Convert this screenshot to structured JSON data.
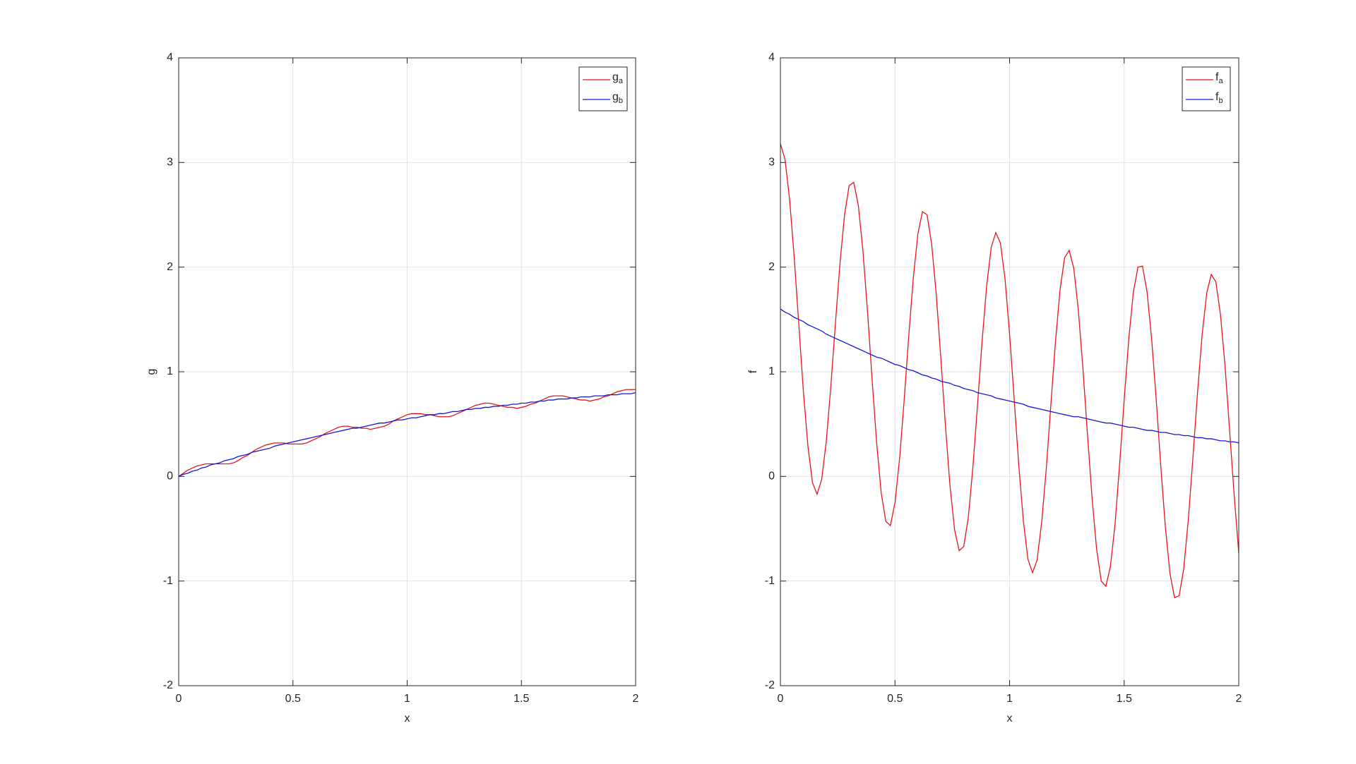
{
  "chart_data": [
    {
      "type": "line",
      "xlabel": "x",
      "ylabel": "g",
      "x": [
        0,
        0.02,
        0.04,
        0.06,
        0.08,
        0.1,
        0.12,
        0.14,
        0.16,
        0.18,
        0.2,
        0.22,
        0.24,
        0.26,
        0.28,
        0.3,
        0.32,
        0.34,
        0.36,
        0.38,
        0.4,
        0.42,
        0.44,
        0.46,
        0.48,
        0.5,
        0.52,
        0.54,
        0.56,
        0.58,
        0.6,
        0.62,
        0.64,
        0.66,
        0.68,
        0.7,
        0.72,
        0.74,
        0.76,
        0.78,
        0.8,
        0.82,
        0.84,
        0.86,
        0.88,
        0.9,
        0.92,
        0.94,
        0.96,
        0.98,
        1,
        1.02,
        1.04,
        1.06,
        1.08,
        1.1,
        1.12,
        1.14,
        1.16,
        1.18,
        1.2,
        1.22,
        1.24,
        1.26,
        1.28,
        1.3,
        1.32,
        1.34,
        1.36,
        1.38,
        1.4,
        1.42,
        1.44,
        1.46,
        1.48,
        1.5,
        1.52,
        1.54,
        1.56,
        1.58,
        1.6,
        1.62,
        1.64,
        1.66,
        1.68,
        1.7,
        1.72,
        1.74,
        1.76,
        1.78,
        1.8,
        1.82,
        1.84,
        1.86,
        1.88,
        1.9,
        1.92,
        1.94,
        1.96,
        1.98,
        2
      ],
      "series": [
        {
          "name": "g_a",
          "color": "#e8141c",
          "values": [
            0,
            0.03,
            0.06,
            0.08,
            0.1,
            0.11,
            0.12,
            0.12,
            0.12,
            0.12,
            0.12,
            0.12,
            0.13,
            0.15,
            0.18,
            0.2,
            0.23,
            0.26,
            0.28,
            0.3,
            0.31,
            0.32,
            0.32,
            0.32,
            0.31,
            0.31,
            0.31,
            0.31,
            0.32,
            0.34,
            0.36,
            0.38,
            0.41,
            0.43,
            0.45,
            0.47,
            0.48,
            0.48,
            0.47,
            0.47,
            0.46,
            0.46,
            0.45,
            0.46,
            0.47,
            0.48,
            0.5,
            0.53,
            0.55,
            0.57,
            0.59,
            0.6,
            0.6,
            0.6,
            0.59,
            0.59,
            0.58,
            0.57,
            0.57,
            0.57,
            0.58,
            0.6,
            0.62,
            0.64,
            0.66,
            0.68,
            0.69,
            0.7,
            0.7,
            0.69,
            0.68,
            0.67,
            0.66,
            0.66,
            0.65,
            0.66,
            0.67,
            0.69,
            0.7,
            0.72,
            0.74,
            0.76,
            0.77,
            0.77,
            0.77,
            0.76,
            0.75,
            0.74,
            0.73,
            0.73,
            0.72,
            0.73,
            0.74,
            0.76,
            0.77,
            0.79,
            0.81,
            0.82,
            0.83,
            0.83,
            0.83
          ]
        },
        {
          "name": "g_b",
          "color": "#1616d6",
          "values": [
            0,
            0.02,
            0.03,
            0.05,
            0.06,
            0.08,
            0.09,
            0.11,
            0.12,
            0.13,
            0.15,
            0.16,
            0.17,
            0.19,
            0.2,
            0.21,
            0.23,
            0.24,
            0.25,
            0.26,
            0.27,
            0.29,
            0.3,
            0.31,
            0.32,
            0.33,
            0.34,
            0.35,
            0.36,
            0.37,
            0.38,
            0.39,
            0.4,
            0.41,
            0.42,
            0.43,
            0.44,
            0.45,
            0.46,
            0.46,
            0.47,
            0.48,
            0.49,
            0.5,
            0.51,
            0.51,
            0.52,
            0.53,
            0.54,
            0.54,
            0.55,
            0.56,
            0.56,
            0.57,
            0.58,
            0.59,
            0.59,
            0.6,
            0.6,
            0.61,
            0.62,
            0.62,
            0.63,
            0.64,
            0.64,
            0.65,
            0.65,
            0.66,
            0.66,
            0.67,
            0.67,
            0.68,
            0.68,
            0.69,
            0.69,
            0.7,
            0.7,
            0.71,
            0.71,
            0.72,
            0.72,
            0.73,
            0.73,
            0.74,
            0.74,
            0.74,
            0.75,
            0.75,
            0.76,
            0.76,
            0.76,
            0.77,
            0.77,
            0.77,
            0.78,
            0.78,
            0.78,
            0.79,
            0.79,
            0.79,
            0.8
          ]
        }
      ],
      "xlim": [
        0,
        2
      ],
      "ylim": [
        -2,
        4
      ],
      "xticks": [
        0,
        0.5,
        1,
        1.5,
        2
      ],
      "yticks": [
        -2,
        -1,
        0,
        1,
        2,
        3,
        4
      ],
      "grid": true,
      "legend": "northeast"
    },
    {
      "type": "line",
      "xlabel": "x",
      "ylabel": "f",
      "x": [
        0,
        0.02,
        0.04,
        0.06,
        0.08,
        0.1,
        0.12,
        0.14,
        0.16,
        0.18,
        0.2,
        0.22,
        0.24,
        0.26,
        0.28,
        0.3,
        0.32,
        0.34,
        0.36,
        0.38,
        0.4,
        0.42,
        0.44,
        0.46,
        0.48,
        0.5,
        0.52,
        0.54,
        0.56,
        0.58,
        0.6,
        0.62,
        0.64,
        0.66,
        0.68,
        0.7,
        0.72,
        0.74,
        0.76,
        0.78,
        0.8,
        0.82,
        0.84,
        0.86,
        0.88,
        0.9,
        0.92,
        0.94,
        0.96,
        0.98,
        1,
        1.02,
        1.04,
        1.06,
        1.08,
        1.1,
        1.12,
        1.14,
        1.16,
        1.18,
        1.2,
        1.22,
        1.24,
        1.26,
        1.28,
        1.3,
        1.32,
        1.34,
        1.36,
        1.38,
        1.4,
        1.42,
        1.44,
        1.46,
        1.48,
        1.5,
        1.52,
        1.54,
        1.56,
        1.58,
        1.6,
        1.62,
        1.64,
        1.66,
        1.68,
        1.7,
        1.72,
        1.74,
        1.76,
        1.78,
        1.8,
        1.82,
        1.84,
        1.86,
        1.88,
        1.9,
        1.92,
        1.94,
        1.96,
        1.98,
        2
      ],
      "series": [
        {
          "name": "f_a",
          "color": "#e8141c",
          "values": [
            3.18,
            3.03,
            2.65,
            2.1,
            1.46,
            0.82,
            0.29,
            -0.06,
            -0.17,
            -0.03,
            0.33,
            0.86,
            1.46,
            2.04,
            2.5,
            2.78,
            2.81,
            2.59,
            2.16,
            1.58,
            0.93,
            0.32,
            -0.16,
            -0.43,
            -0.47,
            -0.25,
            0.17,
            0.73,
            1.34,
            1.9,
            2.32,
            2.53,
            2.5,
            2.22,
            1.74,
            1.13,
            0.49,
            -0.09,
            -0.51,
            -0.71,
            -0.67,
            -0.39,
            0.09,
            0.68,
            1.29,
            1.82,
            2.19,
            2.33,
            2.23,
            1.89,
            1.36,
            0.74,
            0.11,
            -0.42,
            -0.79,
            -0.92,
            -0.8,
            -0.44,
            0.07,
            0.68,
            1.28,
            1.78,
            2.09,
            2.16,
            1.99,
            1.59,
            1.03,
            0.4,
            -0.21,
            -0.7,
            -1,
            -1.05,
            -0.86,
            -0.46,
            0.11,
            0.73,
            1.31,
            1.76,
            2,
            2.01,
            1.76,
            1.31,
            0.73,
            0.09,
            -0.49,
            -0.93,
            -1.16,
            -1.14,
            -0.88,
            -0.41,
            0.18,
            0.8,
            1.35,
            1.75,
            1.93,
            1.86,
            1.55,
            1.06,
            0.44,
            -0.18,
            -0.73
          ]
        },
        {
          "name": "f_b",
          "color": "#1616d6",
          "values": [
            1.6,
            1.57,
            1.55,
            1.52,
            1.5,
            1.48,
            1.45,
            1.43,
            1.41,
            1.39,
            1.36,
            1.34,
            1.32,
            1.3,
            1.28,
            1.26,
            1.24,
            1.22,
            1.2,
            1.18,
            1.16,
            1.14,
            1.13,
            1.11,
            1.09,
            1.07,
            1.06,
            1.04,
            1.02,
            1.01,
            0.99,
            0.97,
            0.96,
            0.94,
            0.93,
            0.91,
            0.9,
            0.89,
            0.87,
            0.86,
            0.84,
            0.83,
            0.82,
            0.8,
            0.79,
            0.78,
            0.77,
            0.75,
            0.74,
            0.73,
            0.72,
            0.71,
            0.7,
            0.69,
            0.67,
            0.66,
            0.65,
            0.64,
            0.63,
            0.62,
            0.61,
            0.6,
            0.59,
            0.58,
            0.57,
            0.57,
            0.56,
            0.55,
            0.54,
            0.53,
            0.52,
            0.51,
            0.51,
            0.5,
            0.49,
            0.48,
            0.47,
            0.47,
            0.46,
            0.45,
            0.44,
            0.44,
            0.43,
            0.42,
            0.42,
            0.41,
            0.4,
            0.4,
            0.39,
            0.39,
            0.38,
            0.37,
            0.37,
            0.36,
            0.36,
            0.35,
            0.34,
            0.34,
            0.33,
            0.33,
            0.32
          ]
        }
      ],
      "xlim": [
        0,
        2
      ],
      "ylim": [
        -2,
        4
      ],
      "xticks": [
        0,
        0.5,
        1,
        1.5,
        2
      ],
      "yticks": [
        -2,
        -1,
        0,
        1,
        2,
        3,
        4
      ],
      "grid": true,
      "legend": "northeast"
    }
  ]
}
